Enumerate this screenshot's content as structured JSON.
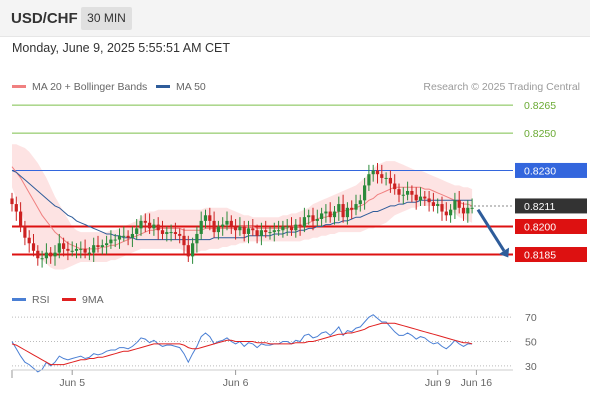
{
  "header": {
    "symbol": "USD/CHF",
    "interval": "30 MIN",
    "datetime": "Monday, June 9, 2025 5:55:51 AM CET"
  },
  "legend_price": [
    {
      "label": "MA 20 + Bollinger Bands",
      "color": "#f08080"
    },
    {
      "label": "MA 50",
      "color": "#2e5c9a"
    }
  ],
  "legend_rsi": [
    {
      "label": "RSI",
      "color": "#4a7fd4"
    },
    {
      "label": "9MA",
      "color": "#e02020"
    }
  ],
  "research": "Research © 2025 Trading Central",
  "colors": {
    "resistance": "#7cbf4a",
    "pivot": "#3366dd",
    "support": "#dd1111",
    "last": "#333333",
    "candle_up": "#2a8a3a",
    "candle_down": "#cc2222",
    "arrow": "#2e5c9a"
  },
  "chart_data": [
    {
      "type": "candlestick",
      "title": "USD/CHF",
      "ylim": [
        0.8166,
        0.8272
      ],
      "levels": [
        {
          "value": 0.8265,
          "label": "0.8265",
          "kind": "resistance"
        },
        {
          "value": 0.825,
          "label": "0.8250",
          "kind": "resistance"
        },
        {
          "value": 0.823,
          "label": "0.8230",
          "kind": "pivot"
        },
        {
          "value": 0.82,
          "label": "0.8200",
          "kind": "support"
        },
        {
          "value": 0.8185,
          "label": "0.8185",
          "kind": "support"
        }
      ],
      "last_price": {
        "value": 0.8211,
        "label": "0.8211"
      },
      "forecast_arrow": {
        "from": 0.8209,
        "to": 0.8187
      },
      "close": [
        0.8212,
        0.8208,
        0.82,
        0.8194,
        0.8191,
        0.8187,
        0.8183,
        0.8183,
        0.8186,
        0.8184,
        0.8186,
        0.8191,
        0.8188,
        0.8187,
        0.8187,
        0.8188,
        0.8188,
        0.8186,
        0.8186,
        0.819,
        0.8189,
        0.819,
        0.8191,
        0.8193,
        0.8193,
        0.8195,
        0.8195,
        0.8194,
        0.8196,
        0.8199,
        0.8203,
        0.8202,
        0.8199,
        0.8201,
        0.8198,
        0.8196,
        0.8197,
        0.8197,
        0.8196,
        0.8195,
        0.819,
        0.8184,
        0.8191,
        0.8196,
        0.8203,
        0.8206,
        0.8203,
        0.8197,
        0.82,
        0.8201,
        0.8203,
        0.82,
        0.8198,
        0.82,
        0.8196,
        0.8199,
        0.8198,
        0.8195,
        0.8198,
        0.8197,
        0.8197,
        0.8198,
        0.8198,
        0.82,
        0.82,
        0.8198,
        0.8201,
        0.82,
        0.8205,
        0.8206,
        0.8203,
        0.8204,
        0.8207,
        0.8208,
        0.8205,
        0.8208,
        0.8212,
        0.8205,
        0.821,
        0.8209,
        0.8212,
        0.8214,
        0.8222,
        0.8228,
        0.823,
        0.8228,
        0.8226,
        0.8226,
        0.8223,
        0.822,
        0.8217,
        0.8217,
        0.8219,
        0.8217,
        0.8214,
        0.8216,
        0.8215,
        0.8213,
        0.8211,
        0.8212,
        0.8208,
        0.8206,
        0.8209,
        0.8214,
        0.821,
        0.8207,
        0.821,
        0.821
      ],
      "ma20": [
        0.8232,
        0.8229,
        0.8226,
        0.8222,
        0.8218,
        0.8214,
        0.821,
        0.8206,
        0.8203,
        0.82,
        0.8197,
        0.8195,
        0.8193,
        0.8191,
        0.819,
        0.8189,
        0.8188,
        0.8188,
        0.8188,
        0.8188,
        0.8188,
        0.8189,
        0.8189,
        0.819,
        0.819,
        0.8191,
        0.8192,
        0.8193,
        0.8194,
        0.8195,
        0.8196,
        0.8197,
        0.8198,
        0.8198,
        0.8199,
        0.8199,
        0.8199,
        0.8199,
        0.8199,
        0.8199,
        0.8198,
        0.8198,
        0.8198,
        0.8198,
        0.8198,
        0.8199,
        0.8199,
        0.8199,
        0.8199,
        0.8199,
        0.8199,
        0.8199,
        0.8199,
        0.82,
        0.82,
        0.82,
        0.82,
        0.8199,
        0.8199,
        0.8199,
        0.8199,
        0.8199,
        0.8199,
        0.8199,
        0.8199,
        0.82,
        0.82,
        0.82,
        0.8201,
        0.8202,
        0.8203,
        0.8204,
        0.8205,
        0.8205,
        0.8206,
        0.8207,
        0.8208,
        0.8208,
        0.8209,
        0.8209,
        0.821,
        0.8211,
        0.8212,
        0.8214,
        0.8215,
        0.8217,
        0.8218,
        0.8219,
        0.822,
        0.8221,
        0.8221,
        0.8221,
        0.8221,
        0.8221,
        0.8221,
        0.8221,
        0.822,
        0.822,
        0.8219,
        0.8218,
        0.8217,
        0.8216,
        0.8215,
        0.8214,
        0.8213,
        0.8212,
        0.8212,
        0.8211
      ],
      "ma50": [
        0.823,
        0.8229,
        0.8227,
        0.8225,
        0.8223,
        0.8221,
        0.8219,
        0.8217,
        0.8215,
        0.8213,
        0.8211,
        0.821,
        0.8208,
        0.8206,
        0.8205,
        0.8203,
        0.8202,
        0.8201,
        0.82,
        0.8199,
        0.8198,
        0.8197,
        0.8196,
        0.8196,
        0.8195,
        0.8195,
        0.8194,
        0.8194,
        0.8194,
        0.8193,
        0.8193,
        0.8193,
        0.8193,
        0.8193,
        0.8193,
        0.8193,
        0.8193,
        0.8193,
        0.8193,
        0.8193,
        0.8193,
        0.8193,
        0.8193,
        0.8193,
        0.8193,
        0.8193,
        0.8193,
        0.8194,
        0.8194,
        0.8194,
        0.8194,
        0.8194,
        0.8194,
        0.8194,
        0.8194,
        0.8195,
        0.8195,
        0.8195,
        0.8195,
        0.8195,
        0.8195,
        0.8196,
        0.8196,
        0.8196,
        0.8197,
        0.8197,
        0.8197,
        0.8198,
        0.8198,
        0.8199,
        0.8199,
        0.82,
        0.82,
        0.8201,
        0.8201,
        0.8202,
        0.8202,
        0.8203,
        0.8203,
        0.8204,
        0.8205,
        0.8205,
        0.8206,
        0.8207,
        0.8208,
        0.8208,
        0.8209,
        0.821,
        0.8211,
        0.8211,
        0.8212,
        0.8212,
        0.8213,
        0.8213,
        0.8213,
        0.8214,
        0.8214,
        0.8214,
        0.8214,
        0.8214,
        0.8214,
        0.8214,
        0.8214,
        0.8214,
        0.8214,
        0.8214,
        0.8214,
        0.8214
      ],
      "band_upper": [
        0.8244,
        0.8244,
        0.8243,
        0.8242,
        0.824,
        0.8237,
        0.8234,
        0.823,
        0.8226,
        0.8221,
        0.8216,
        0.8212,
        0.8208,
        0.8204,
        0.82,
        0.8198,
        0.8197,
        0.8197,
        0.8197,
        0.8197,
        0.8197,
        0.8197,
        0.8197,
        0.8198,
        0.8198,
        0.8199,
        0.82,
        0.8201,
        0.8202,
        0.8203,
        0.8205,
        0.8207,
        0.8208,
        0.8208,
        0.8209,
        0.8209,
        0.8209,
        0.8209,
        0.8209,
        0.8209,
        0.8209,
        0.8209,
        0.8209,
        0.8209,
        0.8209,
        0.821,
        0.821,
        0.821,
        0.821,
        0.821,
        0.821,
        0.8209,
        0.8208,
        0.8207,
        0.8206,
        0.8206,
        0.8205,
        0.8205,
        0.8205,
        0.8205,
        0.8205,
        0.8205,
        0.8205,
        0.8206,
        0.8206,
        0.8207,
        0.8207,
        0.8208,
        0.8209,
        0.821,
        0.8212,
        0.8213,
        0.8214,
        0.8215,
        0.8216,
        0.8217,
        0.8218,
        0.8219,
        0.822,
        0.8221,
        0.8222,
        0.8224,
        0.8226,
        0.8228,
        0.8231,
        0.8233,
        0.8234,
        0.8235,
        0.8235,
        0.8235,
        0.8234,
        0.8233,
        0.8232,
        0.8231,
        0.823,
        0.823,
        0.8229,
        0.8228,
        0.8227,
        0.8226,
        0.8225,
        0.8224,
        0.8223,
        0.8222,
        0.8222,
        0.8221,
        0.8221,
        0.822
      ],
      "band_lower": [
        0.8221,
        0.8215,
        0.8209,
        0.8202,
        0.8196,
        0.8191,
        0.8186,
        0.8182,
        0.818,
        0.8178,
        0.8177,
        0.8177,
        0.8177,
        0.8178,
        0.8179,
        0.818,
        0.8181,
        0.8181,
        0.8181,
        0.8181,
        0.8181,
        0.8181,
        0.8181,
        0.8182,
        0.8182,
        0.8183,
        0.8184,
        0.8185,
        0.8186,
        0.8187,
        0.8188,
        0.8188,
        0.8188,
        0.8188,
        0.8188,
        0.8188,
        0.8188,
        0.8188,
        0.8188,
        0.8188,
        0.8187,
        0.8186,
        0.8186,
        0.8186,
        0.8187,
        0.8187,
        0.8188,
        0.8188,
        0.8188,
        0.8189,
        0.8189,
        0.819,
        0.819,
        0.8191,
        0.8191,
        0.8192,
        0.8192,
        0.8192,
        0.8192,
        0.8192,
        0.8192,
        0.8192,
        0.8192,
        0.8192,
        0.8192,
        0.8192,
        0.8192,
        0.8192,
        0.8193,
        0.8193,
        0.8194,
        0.8194,
        0.8195,
        0.8195,
        0.8196,
        0.8196,
        0.8197,
        0.8197,
        0.8197,
        0.8197,
        0.8197,
        0.8197,
        0.8198,
        0.8199,
        0.8199,
        0.82,
        0.8201,
        0.8202,
        0.8204,
        0.8206,
        0.8207,
        0.8208,
        0.8209,
        0.821,
        0.821,
        0.8211,
        0.8211,
        0.8211,
        0.8211,
        0.8211,
        0.821,
        0.8209,
        0.8208,
        0.8207,
        0.8205,
        0.8204,
        0.8203,
        0.8202
      ]
    },
    {
      "type": "line",
      "title": "RSI",
      "ylim": [
        20,
        80
      ],
      "yticks": [
        70,
        50,
        30
      ],
      "yticklabels": [
        "70",
        "50",
        "30"
      ],
      "series": [
        {
          "name": "RSI",
          "values": [
            50,
            44,
            38,
            33,
            31,
            28,
            25,
            27,
            33,
            30,
            33,
            38,
            36,
            35,
            36,
            37,
            38,
            36,
            37,
            40,
            39,
            40,
            42,
            43,
            43,
            45,
            45,
            44,
            46,
            49,
            53,
            52,
            49,
            51,
            48,
            46,
            47,
            47,
            46,
            45,
            40,
            33,
            40,
            46,
            54,
            57,
            54,
            48,
            50,
            51,
            53,
            50,
            48,
            50,
            46,
            49,
            48,
            45,
            48,
            47,
            47,
            48,
            48,
            50,
            50,
            48,
            51,
            50,
            55,
            56,
            53,
            54,
            57,
            58,
            55,
            58,
            62,
            55,
            59,
            58,
            61,
            62,
            66,
            70,
            72,
            69,
            66,
            66,
            62,
            58,
            55,
            55,
            57,
            55,
            52,
            54,
            53,
            50,
            48,
            49,
            46,
            44,
            47,
            51,
            48,
            46,
            48,
            48
          ]
        },
        {
          "name": "9MA",
          "values": [
            48,
            47,
            45,
            43,
            41,
            39,
            37,
            35,
            33,
            31,
            31,
            31,
            31,
            32,
            33,
            34,
            35,
            35,
            36,
            36,
            37,
            37,
            38,
            39,
            40,
            41,
            42,
            42,
            43,
            44,
            45,
            46,
            47,
            48,
            48,
            48,
            48,
            48,
            48,
            48,
            47,
            45,
            44,
            44,
            45,
            46,
            47,
            48,
            49,
            50,
            51,
            51,
            50,
            50,
            50,
            50,
            50,
            49,
            49,
            49,
            48,
            48,
            48,
            48,
            48,
            48,
            49,
            49,
            49,
            50,
            50,
            51,
            52,
            53,
            54,
            55,
            56,
            56,
            57,
            57,
            58,
            59,
            60,
            62,
            63,
            64,
            65,
            65,
            65,
            65,
            64,
            63,
            62,
            61,
            60,
            59,
            58,
            57,
            56,
            55,
            54,
            53,
            52,
            51,
            50,
            49,
            49,
            48
          ]
        }
      ]
    }
  ],
  "x_axis": {
    "ticks": [
      {
        "label": "Jun 5",
        "index": 14
      },
      {
        "label": "Jun 6",
        "index": 52
      },
      {
        "label": "Jun 9",
        "index": 99
      },
      {
        "label": "Jun 16",
        "index": 108
      }
    ]
  }
}
